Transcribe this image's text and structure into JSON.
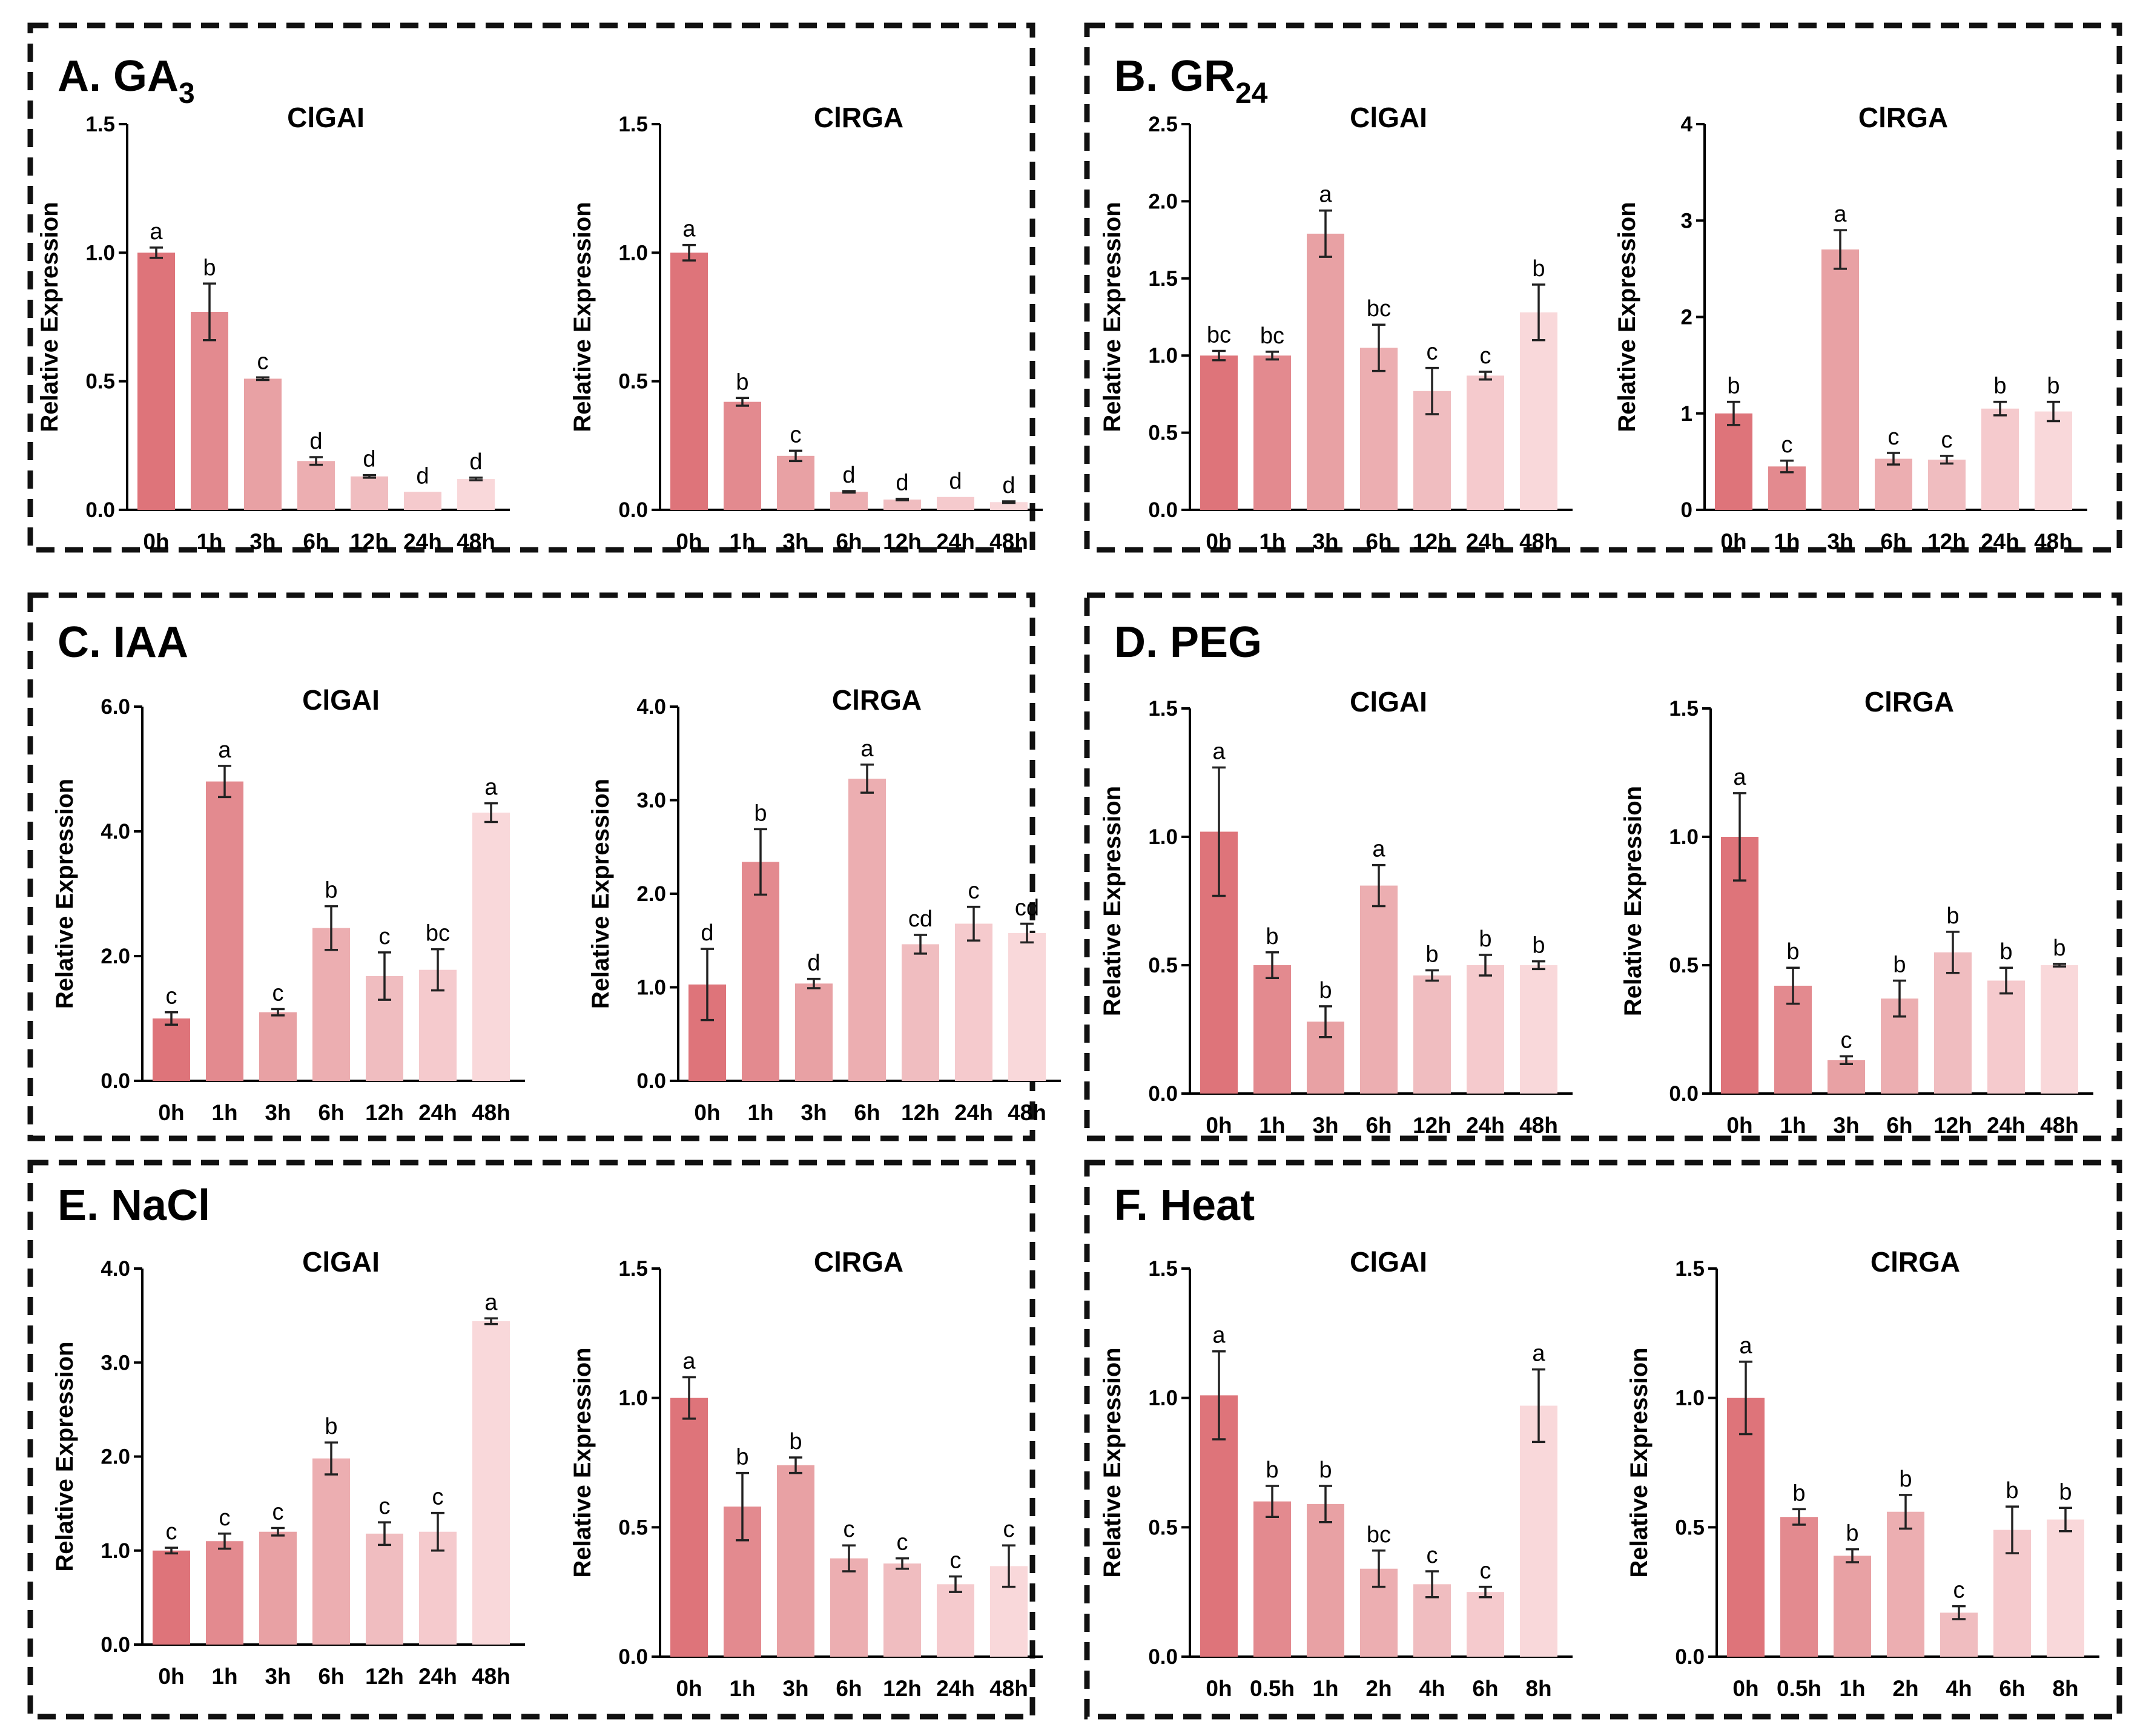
{
  "colors": [
    "#DE747A",
    "#E38A8F",
    "#E8A1A4",
    "#ECAEB1",
    "#F0BDC0",
    "#F5CACD",
    "#F9D8DA"
  ],
  "chart_data": [
    {
      "panel": "A",
      "panel_label": "A. GA",
      "panel_sub": "3",
      "type": "bar",
      "charts": [
        {
          "type": "bar",
          "title": "ClGAI",
          "ylabel": "Relative Expression",
          "ylim": [
            0,
            1.5
          ],
          "yticks": [
            "0.0",
            "0.5",
            "1.0",
            "1.5"
          ],
          "ytick_values": [
            0,
            0.5,
            1.0,
            1.5
          ],
          "categories": [
            "0h",
            "1h",
            "3h",
            "6h",
            "12h",
            "24h",
            "48h"
          ],
          "values": [
            1.0,
            0.77,
            0.51,
            0.19,
            0.13,
            0.07,
            0.12
          ],
          "errors": [
            0.02,
            0.11,
            0.005,
            0.015,
            0.005,
            0.0,
            0.005
          ],
          "labels": [
            "a",
            "b",
            "c",
            "d",
            "d",
            "d",
            "d"
          ]
        },
        {
          "type": "bar",
          "title": "ClRGA",
          "ylabel": "Relative Expression",
          "ylim": [
            0,
            1.5
          ],
          "yticks": [
            "0.0",
            "0.5",
            "1.0",
            "1.5"
          ],
          "ytick_values": [
            0,
            0.5,
            1.0,
            1.5
          ],
          "categories": [
            "0h",
            "1h",
            "3h",
            "6h",
            "12h",
            "24h",
            "48h"
          ],
          "values": [
            1.0,
            0.42,
            0.21,
            0.07,
            0.04,
            0.05,
            0.03
          ],
          "errors": [
            0.03,
            0.015,
            0.02,
            0.003,
            0.003,
            0.0,
            0.003
          ],
          "labels": [
            "a",
            "b",
            "c",
            "d",
            "d",
            "d",
            "d"
          ]
        }
      ]
    },
    {
      "panel": "B",
      "panel_label": "B. GR",
      "panel_sub": "24",
      "type": "bar",
      "charts": [
        {
          "type": "bar",
          "title": "ClGAI",
          "ylabel": "Relative Expression",
          "ylim": [
            0,
            2.5
          ],
          "yticks": [
            "0.0",
            "0.5",
            "1.0",
            "1.5",
            "2.0",
            "2.5"
          ],
          "ytick_values": [
            0,
            0.5,
            1.0,
            1.5,
            2.0,
            2.5
          ],
          "categories": [
            "0h",
            "1h",
            "3h",
            "6h",
            "12h",
            "24h",
            "48h"
          ],
          "values": [
            1.0,
            1.0,
            1.79,
            1.05,
            0.77,
            0.87,
            1.28
          ],
          "errors": [
            0.03,
            0.025,
            0.15,
            0.15,
            0.15,
            0.025,
            0.18
          ],
          "labels": [
            "bc",
            "bc",
            "a",
            "bc",
            "c",
            "c",
            "b"
          ]
        },
        {
          "type": "bar",
          "title": "ClRGA",
          "ylabel": "Relative Expression",
          "ylim": [
            0,
            4
          ],
          "yticks": [
            "0",
            "1",
            "2",
            "3",
            "4"
          ],
          "ytick_values": [
            0,
            1,
            2,
            3,
            4
          ],
          "categories": [
            "0h",
            "1h",
            "3h",
            "6h",
            "12h",
            "24h",
            "48h"
          ],
          "values": [
            1.0,
            0.45,
            2.7,
            0.53,
            0.52,
            1.05,
            1.02
          ],
          "errors": [
            0.12,
            0.06,
            0.2,
            0.06,
            0.04,
            0.07,
            0.1
          ],
          "labels": [
            "b",
            "c",
            "a",
            "c",
            "c",
            "b",
            "b"
          ]
        }
      ]
    },
    {
      "panel": "C",
      "panel_label": "C. IAA",
      "panel_sub": "",
      "type": "bar",
      "charts": [
        {
          "type": "bar",
          "title": "ClGAI",
          "ylabel": "Relative Expression",
          "ylim": [
            0,
            6
          ],
          "yticks": [
            "0.0",
            "2.0",
            "4.0",
            "6.0"
          ],
          "ytick_values": [
            0,
            2,
            4,
            6
          ],
          "categories": [
            "0h",
            "1h",
            "3h",
            "6h",
            "12h",
            "24h",
            "48h"
          ],
          "values": [
            1.0,
            4.8,
            1.1,
            2.45,
            1.68,
            1.78,
            4.3
          ],
          "errors": [
            0.1,
            0.25,
            0.05,
            0.35,
            0.38,
            0.33,
            0.15
          ],
          "labels": [
            "c",
            "a",
            "c",
            "b",
            "c",
            "bc",
            "a"
          ]
        },
        {
          "type": "bar",
          "title": "ClRGA",
          "ylabel": "Relative Expression",
          "ylim": [
            0,
            4
          ],
          "yticks": [
            "0.0",
            "1.0",
            "2.0",
            "3.0",
            "4.0"
          ],
          "ytick_values": [
            0,
            1,
            2,
            3,
            4
          ],
          "categories": [
            "0h",
            "1h",
            "3h",
            "6h",
            "12h",
            "24h",
            "48h"
          ],
          "values": [
            1.03,
            2.34,
            1.04,
            3.23,
            1.46,
            1.68,
            1.58
          ],
          "errors": [
            0.38,
            0.35,
            0.05,
            0.15,
            0.1,
            0.18,
            0.1
          ],
          "labels": [
            "d",
            "b",
            "d",
            "a",
            "cd",
            "c",
            "cd"
          ]
        }
      ]
    },
    {
      "panel": "D",
      "panel_label": "D. PEG",
      "panel_sub": "",
      "type": "bar",
      "charts": [
        {
          "type": "bar",
          "title": "ClGAI",
          "ylabel": "Relative Expression",
          "ylim": [
            0,
            1.5
          ],
          "yticks": [
            "0.0",
            "0.5",
            "1.0",
            "1.5"
          ],
          "ytick_values": [
            0,
            0.5,
            1.0,
            1.5
          ],
          "categories": [
            "0h",
            "1h",
            "3h",
            "6h",
            "12h",
            "24h",
            "48h"
          ],
          "values": [
            1.02,
            0.5,
            0.28,
            0.81,
            0.46,
            0.5,
            0.5
          ],
          "errors": [
            0.25,
            0.05,
            0.06,
            0.08,
            0.02,
            0.04,
            0.015
          ],
          "labels": [
            "a",
            "b",
            "b",
            "a",
            "b",
            "b",
            "b"
          ]
        },
        {
          "type": "bar",
          "title": "ClRGA",
          "ylabel": "Relative Expression",
          "ylim": [
            0,
            1.5
          ],
          "yticks": [
            "0.0",
            "0.5",
            "1.0",
            "1.5"
          ],
          "ytick_values": [
            0,
            0.5,
            1.0,
            1.5
          ],
          "categories": [
            "0h",
            "1h",
            "3h",
            "6h",
            "12h",
            "24h",
            "48h"
          ],
          "values": [
            1.0,
            0.42,
            0.13,
            0.37,
            0.55,
            0.44,
            0.5
          ],
          "errors": [
            0.17,
            0.07,
            0.015,
            0.07,
            0.08,
            0.05,
            0.005
          ],
          "labels": [
            "a",
            "b",
            "c",
            "b",
            "b",
            "b",
            "b"
          ]
        }
      ]
    },
    {
      "panel": "E",
      "panel_label": "E. NaCl",
      "panel_sub": "",
      "type": "bar",
      "charts": [
        {
          "type": "bar",
          "title": "ClGAI",
          "ylabel": "Relative Expression",
          "ylim": [
            0,
            4
          ],
          "yticks": [
            "0.0",
            "1.0",
            "2.0",
            "3.0",
            "4.0"
          ],
          "ytick_values": [
            0,
            1,
            2,
            3,
            4
          ],
          "categories": [
            "0h",
            "1h",
            "3h",
            "6h",
            "12h",
            "24h",
            "48h"
          ],
          "values": [
            1.0,
            1.1,
            1.2,
            1.98,
            1.18,
            1.2,
            3.44
          ],
          "errors": [
            0.03,
            0.08,
            0.04,
            0.17,
            0.12,
            0.2,
            0.03
          ],
          "labels": [
            "c",
            "c",
            "c",
            "b",
            "c",
            "c",
            "a"
          ]
        },
        {
          "type": "bar",
          "title": "ClRGA",
          "ylabel": "Relative Expression",
          "ylim": [
            0,
            1.5
          ],
          "yticks": [
            "0.0",
            "0.5",
            "1.0",
            "1.5"
          ],
          "ytick_values": [
            0,
            0.5,
            1.0,
            1.5
          ],
          "categories": [
            "0h",
            "1h",
            "3h",
            "6h",
            "12h",
            "24h",
            "48h"
          ],
          "values": [
            1.0,
            0.58,
            0.74,
            0.38,
            0.36,
            0.28,
            0.35
          ],
          "errors": [
            0.08,
            0.13,
            0.03,
            0.05,
            0.02,
            0.03,
            0.08
          ],
          "labels": [
            "a",
            "b",
            "b",
            "c",
            "c",
            "c",
            "c"
          ]
        }
      ]
    },
    {
      "panel": "F",
      "panel_label": "F. Heat",
      "panel_sub": "",
      "type": "bar",
      "charts": [
        {
          "type": "bar",
          "title": "ClGAI",
          "ylabel": "Relative Expression",
          "ylim": [
            0,
            1.5
          ],
          "yticks": [
            "0.0",
            "0.5",
            "1.0",
            "1.5"
          ],
          "ytick_values": [
            0,
            0.5,
            1.0,
            1.5
          ],
          "categories": [
            "0h",
            "0.5h",
            "1h",
            "2h",
            "4h",
            "6h",
            "8h"
          ],
          "values": [
            1.01,
            0.6,
            0.59,
            0.34,
            0.28,
            0.25,
            0.97
          ],
          "errors": [
            0.17,
            0.06,
            0.07,
            0.07,
            0.05,
            0.02,
            0.14
          ],
          "labels": [
            "a",
            "b",
            "b",
            "bc",
            "c",
            "c",
            "a"
          ]
        },
        {
          "type": "bar",
          "title": "ClRGA",
          "ylabel": "Relative Expression",
          "ylim": [
            0,
            1.5
          ],
          "yticks": [
            "0.0",
            "0.5",
            "1.0",
            "1.5"
          ],
          "ytick_values": [
            0,
            0.5,
            1.0,
            1.5
          ],
          "categories": [
            "0h",
            "0.5h",
            "1h",
            "2h",
            "4h",
            "6h",
            "8h"
          ],
          "values": [
            1.0,
            0.54,
            0.39,
            0.56,
            0.17,
            0.49,
            0.53
          ],
          "errors": [
            0.14,
            0.03,
            0.025,
            0.065,
            0.025,
            0.09,
            0.045
          ],
          "labels": [
            "a",
            "b",
            "b",
            "b",
            "c",
            "b",
            "b"
          ]
        }
      ]
    }
  ]
}
